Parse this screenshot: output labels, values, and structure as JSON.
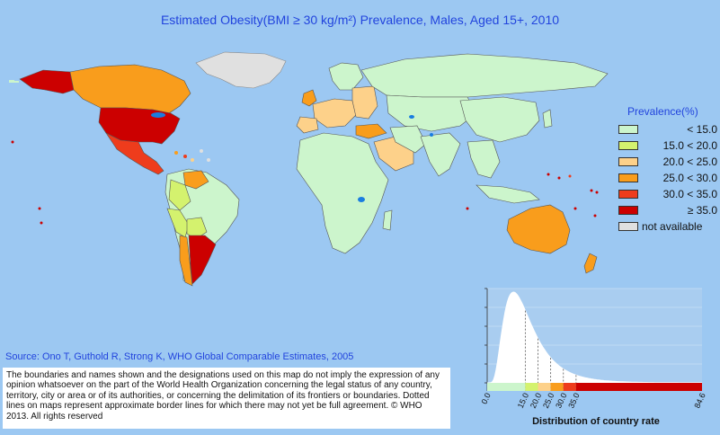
{
  "title": "Estimated Obesity(BMI ≥ 30 kg/m²) Prevalence, Males, Aged 15+, 2010",
  "legend": {
    "title": "Prevalence(%)",
    "items": [
      {
        "label": "< 15.0",
        "color": "#ccf5cc"
      },
      {
        "label": "15.0 < 20.0",
        "color": "#d4f26e"
      },
      {
        "label": "20.0 < 25.0",
        "color": "#fdd18a"
      },
      {
        "label": "25.0 < 30.0",
        "color": "#f99d1c"
      },
      {
        "label": "30.0 < 35.0",
        "color": "#ee3c1c"
      },
      {
        "label": "≥ 35.0",
        "color": "#cc0000"
      },
      {
        "label": "not available",
        "color": "#e0e0e0"
      }
    ]
  },
  "source": "Source: Ono T, Guthold R, Strong K, WHO Global Comparable Estimates, 2005",
  "disclaimer": "The boundaries and names shown and the designations used on this map do not imply the expression of any opinion whatsoever on the part of the World Health Organization concerning the legal status of any country, territory, city or area or of its authorities, or concerning the delimitation of its frontiers or boundaries. Dotted lines on maps represent approximate border lines for which there may not yet be full agreement. © WHO 2013. All rights reserved",
  "distribution": {
    "caption": "Distribution of country rate",
    "ticks": [
      "0.0",
      "15.0",
      "20.0",
      "25.0",
      "30.0",
      "35.0",
      "84.6"
    ],
    "tick_values": [
      0,
      15,
      20,
      25,
      30,
      35,
      84.6
    ],
    "max": 84.6
  },
  "colors": {
    "ocean": "#9cc8f2",
    "title": "#2244dd"
  }
}
